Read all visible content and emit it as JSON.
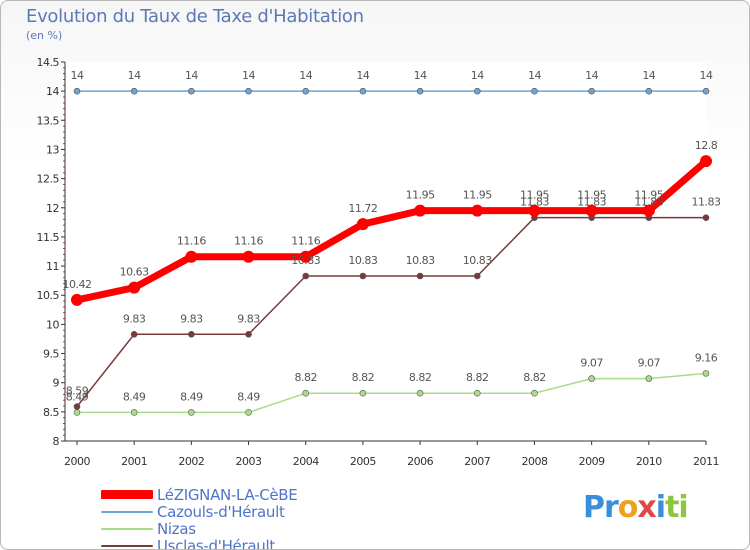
{
  "title": "Evolution du Taux de Taxe d'Habitation",
  "unit": "(en %)",
  "logo": {
    "parts": [
      "Pr",
      "o",
      "x",
      "i",
      "ti"
    ],
    "colors": [
      "#3a8fd8",
      "#f0a020",
      "#e04848",
      "#3a8fd8",
      "#8cc63e"
    ]
  },
  "chart_data": {
    "type": "line",
    "title": "Evolution du Taux de Taxe d'Habitation",
    "ylabel": "(en %)",
    "xlabel": "",
    "x": [
      "2000",
      "2001",
      "2002",
      "2003",
      "2004",
      "2005",
      "2006",
      "2007",
      "2008",
      "2009",
      "2010",
      "2011"
    ],
    "ylim": [
      8,
      14.5
    ],
    "yticks": [
      "8",
      "8.5",
      "9",
      "9.5",
      "10",
      "10.5",
      "11",
      "11.5",
      "12",
      "12.5",
      "13",
      "13.5",
      "14",
      "14.5"
    ],
    "series": [
      {
        "name": "LéZIGNAN-LA-CèBE",
        "color": "#ff0000",
        "values": [
          10.42,
          10.63,
          11.16,
          11.16,
          11.16,
          11.72,
          11.95,
          11.95,
          11.95,
          11.95,
          11.95,
          12.8
        ],
        "labels": [
          "10.42",
          "10.63",
          "11.16",
          "11.16",
          "11.16",
          "11.72",
          "11.95",
          "11.95",
          "11.95",
          "11.95",
          "11.95",
          "12.8"
        ]
      },
      {
        "name": "Cazouls-d'Hérault",
        "color": "#6fa3d4",
        "values": [
          14,
          14,
          14,
          14,
          14,
          14,
          14,
          14,
          14,
          14,
          14,
          14
        ],
        "labels": [
          "14",
          "14",
          "14",
          "14",
          "14",
          "14",
          "14",
          "14",
          "14",
          "14",
          "14",
          "14"
        ]
      },
      {
        "name": "Nizas",
        "color": "#a8dc8a",
        "values": [
          8.49,
          8.49,
          8.49,
          8.49,
          8.82,
          8.82,
          8.82,
          8.82,
          8.82,
          9.07,
          9.07,
          9.16
        ],
        "labels": [
          "8.49",
          "8.49",
          "8.49",
          "8.49",
          "8.82",
          "8.82",
          "8.82",
          "8.82",
          "8.82",
          "9.07",
          "9.07",
          "9.16"
        ]
      },
      {
        "name": "Usclas-d'Hérault",
        "color": "#7a3a3a",
        "values": [
          8.59,
          9.83,
          9.83,
          9.83,
          10.83,
          10.83,
          10.83,
          10.83,
          11.83,
          11.83,
          11.83,
          11.83
        ],
        "labels": [
          "8.59",
          "9.83",
          "9.83",
          "9.83",
          "10.83",
          "10.83",
          "10.83",
          "10.83",
          "11.83",
          "11.83",
          "11.83",
          "11.83"
        ]
      }
    ]
  }
}
